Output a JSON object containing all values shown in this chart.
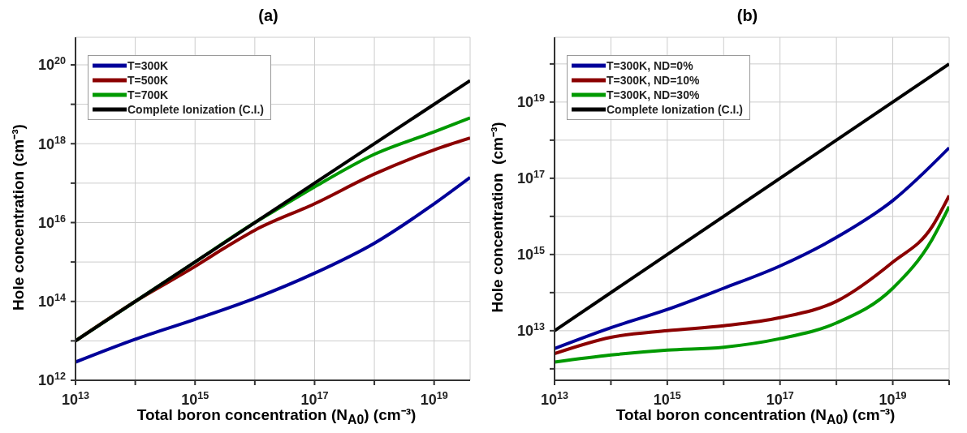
{
  "chart_data": [
    {
      "type": "line",
      "title": "(a)",
      "xlabel": "Total boron concentration (N$_{A0}$) (cm⁻³)",
      "ylabel": "Hole concentration (cm⁻³)",
      "log": "xy",
      "grid": true,
      "legend": "top left",
      "line_style": "solid",
      "xlim": [
        10000000000000.0,
        4e+19
      ],
      "ylim": [
        1000000000000.0,
        5e+20
      ],
      "xticks": [
        {
          "value": 10000000000000.0,
          "label": "10$^{13}$"
        },
        {
          "value": 100000000000000.0,
          "label": null
        },
        {
          "value": 1000000000000000.0,
          "label": "10$^{15}$"
        },
        {
          "value": 1e+16,
          "label": null
        },
        {
          "value": 1e+17,
          "label": "10$^{17}$"
        },
        {
          "value": 1e+18,
          "label": null
        },
        {
          "value": 1e+19,
          "label": "10$^{19}$"
        }
      ],
      "yticks": [
        {
          "value": 1000000000000.0,
          "label": "10$^{12}$"
        },
        {
          "value": 10000000000000.0,
          "label": null
        },
        {
          "value": 100000000000000.0,
          "label": "10$^{14}$"
        },
        {
          "value": 1000000000000000.0,
          "label": null
        },
        {
          "value": 1e+16,
          "label": "10$^{16}$"
        },
        {
          "value": 1e+17,
          "label": null
        },
        {
          "value": 1e+18,
          "label": "10$^{18}$"
        },
        {
          "value": 1e+19,
          "label": null
        },
        {
          "value": 1e+20,
          "label": "10$^{20}$"
        }
      ],
      "series": [
        {
          "name": "T=300K",
          "color": "#000099",
          "x": [
            10000000000000.0,
            100000000000000.0,
            1000000000000000.0,
            1e+16,
            1e+17,
            1e+18,
            1e+19,
            4e+19
          ],
          "values": [
            2900000000000.0,
            11000000000000.0,
            35000000000000.0,
            120000000000000.0,
            520000000000000.0,
            3000000000000000.0,
            3e+16,
            1.4e+17
          ]
        },
        {
          "name": "T=500K",
          "color": "#8b0000",
          "x": [
            10000000000000.0,
            100000000000000.0,
            1000000000000000.0,
            3000000000000000.0,
            1e+16,
            1e+17,
            1e+18,
            1e+19,
            4e+19
          ],
          "values": [
            10000000000000.0,
            100000000000000.0,
            770000000000000.0,
            2200000000000000.0,
            6400000000000000.0,
            3e+16,
            1.7e+17,
            7e+17,
            1.4e+18
          ]
        },
        {
          "name": "T=700K",
          "color": "#009900",
          "x": [
            10000000000000.0,
            100000000000000.0,
            1000000000000000.0,
            1e+16,
            3e+16,
            1e+17,
            1e+18,
            1e+19,
            4e+19
          ],
          "values": [
            10000000000000.0,
            100000000000000.0,
            1000000000000000.0,
            1e+16,
            2.7e+16,
            8e+16,
            5.4e+17,
            2e+18,
            4.5e+18
          ]
        },
        {
          "name": "Complete Ionization (C.I.)",
          "color": "#000000",
          "x": [
            10000000000000.0,
            4e+19
          ],
          "values": [
            10000000000000.0,
            4e+19
          ]
        }
      ]
    },
    {
      "type": "line",
      "title": "(b)",
      "xlabel": "Total boron concentration (N$_{A0}$) (cm⁻³)",
      "ylabel": "Hole concentration  (cm⁻³)",
      "log": "xy",
      "grid": true,
      "legend": "top left",
      "line_style": "solid",
      "xlim": [
        10000000000000.0,
        1e+20
      ],
      "ylim": [
        500000000000.0,
        5e+20
      ],
      "xticks": [
        {
          "value": 10000000000000.0,
          "label": "10$^{13}$"
        },
        {
          "value": 100000000000000.0,
          "label": null
        },
        {
          "value": 1000000000000000.0,
          "label": "10$^{15}$"
        },
        {
          "value": 1e+16,
          "label": null
        },
        {
          "value": 1e+17,
          "label": "10$^{17}$"
        },
        {
          "value": 1e+18,
          "label": null
        },
        {
          "value": 1e+19,
          "label": "10$^{19}$"
        },
        {
          "value": 1e+20,
          "label": null
        }
      ],
      "yticks": [
        {
          "value": 1000000000000.0,
          "label": null
        },
        {
          "value": 10000000000000.0,
          "label": "10$^{13}$"
        },
        {
          "value": 100000000000000.0,
          "label": null
        },
        {
          "value": 1000000000000000.0,
          "label": "10$^{15}$"
        },
        {
          "value": 1e+16,
          "label": null
        },
        {
          "value": 1e+17,
          "label": "10$^{17}$"
        },
        {
          "value": 1e+18,
          "label": null
        },
        {
          "value": 1e+19,
          "label": "10$^{19}$"
        },
        {
          "value": 1e+20,
          "label": null
        }
      ],
      "series": [
        {
          "name": "T=300K, ND=0%",
          "color": "#000099",
          "x": [
            10000000000000.0,
            100000000000000.0,
            1000000000000000.0,
            1e+16,
            1e+17,
            1e+18,
            1e+19,
            1e+20
          ],
          "values": [
            3400000000000.0,
            12000000000000.0,
            36000000000000.0,
            130000000000000.0,
            500000000000000.0,
            2800000000000000.0,
            2.6e+16,
            6.3e+17
          ]
        },
        {
          "name": "T=300K, ND=10%",
          "color": "#8b0000",
          "x": [
            10000000000000.0,
            100000000000000.0,
            1000000000000000.0,
            1e+16,
            1e+17,
            1e+18,
            1e+19,
            5e+19,
            1e+20
          ],
          "values": [
            2500000000000.0,
            6700000000000.0,
            10000000000000.0,
            13500000000000.0,
            22000000000000.0,
            59000000000000.0,
            630000000000000.0,
            5400000000000000.0,
            3.5e+16
          ]
        },
        {
          "name": "T=300K, ND=30%",
          "color": "#009900",
          "x": [
            10000000000000.0,
            100000000000000.0,
            1000000000000000.0,
            1e+16,
            1e+17,
            1e+18,
            1e+19,
            5e+19,
            1e+20
          ],
          "values": [
            1500000000000.0,
            2300000000000.0,
            3100000000000.0,
            3700000000000.0,
            6200000000000.0,
            16000000000000.0,
            130000000000000.0,
            2500000000000000.0,
            1.8e+16
          ]
        },
        {
          "name": "Complete Ionization (C.I.)",
          "color": "#000000",
          "x": [
            10000000000000.0,
            1e+20
          ],
          "values": [
            10000000000000.0,
            1e+20
          ]
        }
      ]
    }
  ]
}
